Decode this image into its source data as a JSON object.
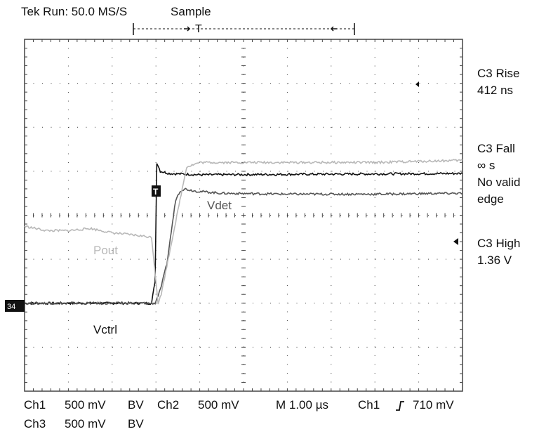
{
  "header": {
    "status": "Tek Run: 50.0 MS/S",
    "acq_mode": "Sample",
    "trigger_marker": "T"
  },
  "measurements": [
    {
      "lines": [
        "C3 Rise",
        "412 ns"
      ]
    },
    {
      "lines": [
        "C3 Fall",
        "∞ s",
        "No valid",
        "edge"
      ]
    },
    {
      "lines": [
        "C3 High",
        "1.36 V"
      ]
    }
  ],
  "footer": {
    "ch1_name": "Ch1",
    "ch1_scale": "500 mV",
    "ch1_bw": "BV",
    "ch2_name": "Ch2",
    "ch2_scale": "500 mV",
    "timebase": "M 1.00 µs",
    "trig_source": "Ch1",
    "trig_level": "710 mV",
    "ch3_name": "Ch3",
    "ch3_scale": "500 mV",
    "ch3_bw": "BV"
  },
  "trace_labels": {
    "vdet": "Vdet",
    "pout": "Pout",
    "vctrl": "Vctrl"
  },
  "markers": {
    "trigger_position": "T",
    "ground_ref": "34"
  },
  "colors": {
    "grid": "#444444",
    "vctrl": "#111111",
    "vdet": "#555555",
    "pout": "#b8b8b8"
  },
  "chart_data": {
    "type": "line",
    "x_unit": "div",
    "y_unit": "div",
    "x_range": [
      0,
      10
    ],
    "y_range": [
      -4,
      4
    ],
    "grid": true,
    "series": [
      {
        "name": "Vctrl",
        "color": "#111111",
        "x": [
          0,
          2.9,
          2.98,
          3.02,
          3.1,
          3.3,
          4,
          10
        ],
        "y": [
          -2,
          -2,
          -1.5,
          1.2,
          1.0,
          0.95,
          0.92,
          0.95
        ]
      },
      {
        "name": "Vdet",
        "color": "#555555",
        "x": [
          0,
          2.98,
          3.1,
          3.25,
          3.45,
          3.55,
          3.65,
          3.9,
          4.5,
          6,
          8,
          10
        ],
        "y": [
          -2,
          -2,
          -1.7,
          -1.1,
          0.35,
          0.55,
          0.6,
          0.55,
          0.5,
          0.48,
          0.48,
          0.5
        ]
      },
      {
        "name": "Pout",
        "color": "#b8b8b8",
        "x": [
          0,
          0.5,
          1,
          1.5,
          2,
          2.5,
          2.9,
          3.05,
          3.12,
          3.3,
          3.7,
          4,
          6,
          8,
          10
        ],
        "y": [
          -0.25,
          -0.35,
          -0.35,
          -0.3,
          -0.4,
          -0.45,
          -0.5,
          -2,
          -1.8,
          -0.9,
          1.1,
          1.2,
          1.2,
          1.2,
          1.25
        ]
      }
    ]
  }
}
